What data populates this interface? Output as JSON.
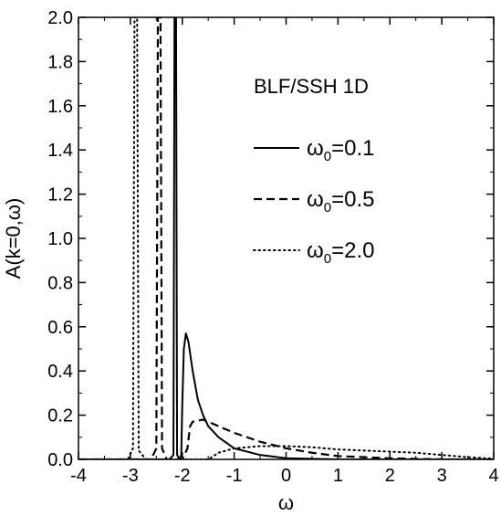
{
  "chart_data": {
    "type": "line",
    "title": "",
    "annotation": "BLF/SSH 1D",
    "xlabel": "ω",
    "ylabel": "A(k=0,ω)",
    "xlim": [
      -4,
      4
    ],
    "ylim": [
      0,
      2.0
    ],
    "xticks": [
      -4,
      -3,
      -2,
      -1,
      0,
      1,
      2,
      3,
      4
    ],
    "xtick_labels": [
      "-4",
      "-3",
      "-2",
      "-1",
      "0",
      "1",
      "2",
      "3",
      "4"
    ],
    "yticks": [
      0,
      0.2,
      0.4,
      0.6,
      0.8,
      1.0,
      1.2,
      1.4,
      1.6,
      1.8,
      2.0
    ],
    "ytick_labels": [
      "0.0",
      "0.2",
      "0.4",
      "0.6",
      "0.8",
      "1.0",
      "1.2",
      "1.4",
      "1.6",
      "1.8",
      "2.0"
    ],
    "legend_position": "right",
    "series": [
      {
        "name": "ω0=0.1",
        "legend_symbol": "ω",
        "legend_sub": "0",
        "legend_value": "=0.1",
        "dash": "solid",
        "points": [
          [
            -4.0,
            0
          ],
          [
            -2.25,
            0
          ],
          [
            -2.17,
            0.02
          ],
          [
            -2.15,
            2.0
          ],
          [
            -2.12,
            2.0
          ],
          [
            -2.1,
            0.02
          ],
          [
            -2.05,
            0
          ],
          [
            -2.02,
            0.02
          ],
          [
            -2.0,
            0.25
          ],
          [
            -1.97,
            0.5
          ],
          [
            -1.93,
            0.57
          ],
          [
            -1.88,
            0.53
          ],
          [
            -1.8,
            0.4
          ],
          [
            -1.7,
            0.27
          ],
          [
            -1.6,
            0.2
          ],
          [
            -1.5,
            0.15
          ],
          [
            -1.3,
            0.1
          ],
          [
            -1.0,
            0.05
          ],
          [
            -0.5,
            0.02
          ],
          [
            0,
            0.005
          ],
          [
            1,
            0
          ],
          [
            4,
            0
          ]
        ]
      },
      {
        "name": "ω0=0.5",
        "legend_symbol": "ω",
        "legend_sub": "0",
        "legend_value": "=0.5",
        "dash": "dashed",
        "points": [
          [
            -4.0,
            0
          ],
          [
            -2.6,
            0
          ],
          [
            -2.5,
            0.05
          ],
          [
            -2.47,
            2.0
          ],
          [
            -2.42,
            2.0
          ],
          [
            -2.39,
            0.05
          ],
          [
            -2.3,
            0
          ],
          [
            -2.0,
            0
          ],
          [
            -1.9,
            0.05
          ],
          [
            -1.85,
            0.15
          ],
          [
            -1.8,
            0.17
          ],
          [
            -1.6,
            0.18
          ],
          [
            -1.4,
            0.16
          ],
          [
            -1.2,
            0.14
          ],
          [
            -1.0,
            0.12
          ],
          [
            -0.5,
            0.08
          ],
          [
            0,
            0.05
          ],
          [
            0.5,
            0.03
          ],
          [
            1,
            0.015
          ],
          [
            2,
            0.005
          ],
          [
            3,
            0
          ],
          [
            4,
            0
          ]
        ]
      },
      {
        "name": "ω0=2.0",
        "legend_symbol": "ω",
        "legend_sub": "0",
        "legend_value": "=2.0",
        "dash": "dotted",
        "points": [
          [
            -4.0,
            0
          ],
          [
            -3.05,
            0
          ],
          [
            -2.95,
            0.05
          ],
          [
            -2.92,
            2.0
          ],
          [
            -2.87,
            2.0
          ],
          [
            -2.84,
            0.04
          ],
          [
            -2.7,
            0
          ],
          [
            -1.5,
            0
          ],
          [
            -1.3,
            0.03
          ],
          [
            -1.0,
            0.05
          ],
          [
            -0.5,
            0.06
          ],
          [
            0,
            0.06
          ],
          [
            0.5,
            0.055
          ],
          [
            1,
            0.045
          ],
          [
            1.5,
            0.04
          ],
          [
            2,
            0.035
          ],
          [
            2.5,
            0.03
          ],
          [
            3,
            0.02
          ],
          [
            3.5,
            0.01
          ],
          [
            4,
            0.003
          ]
        ]
      }
    ]
  }
}
